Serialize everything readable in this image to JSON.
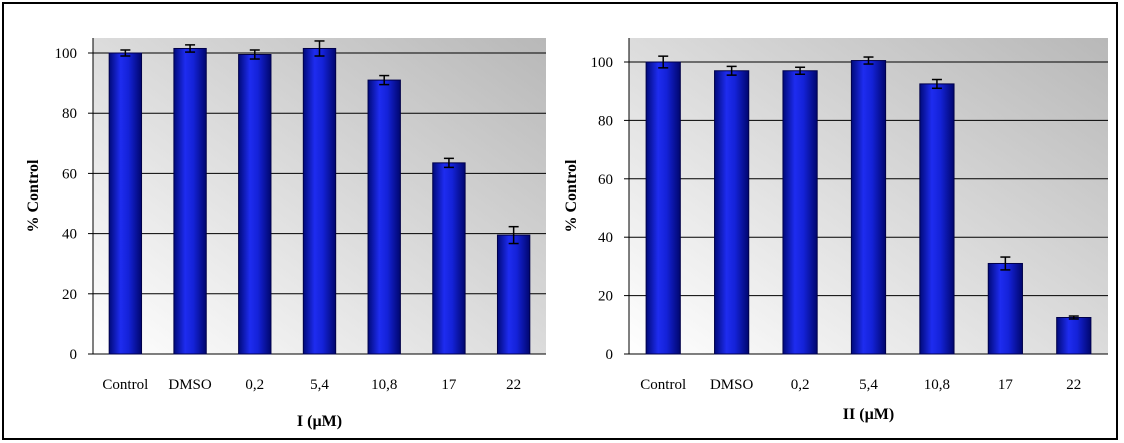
{
  "chart_data": [
    {
      "type": "bar",
      "title": "",
      "xlabel": "I (µM)",
      "ylabel": "% Control",
      "categories": [
        "Control",
        "DMSO",
        "0,2",
        "5,4",
        "10,8",
        "17",
        "22"
      ],
      "values": [
        100,
        101.5,
        99.5,
        101.5,
        91,
        63.5,
        39.5
      ],
      "errors": [
        1,
        1.2,
        1.5,
        2.5,
        1.5,
        1.5,
        2.8
      ],
      "ylim": [
        0,
        100
      ],
      "yticks": [
        "0",
        "20",
        "40",
        "60",
        "80",
        "100"
      ],
      "grid": true,
      "bar_color": "#0a12a8"
    },
    {
      "type": "bar",
      "title": "",
      "xlabel": "II (µM)",
      "ylabel": "% Control",
      "categories": [
        "Control",
        "DMSO",
        "0,2",
        "5,4",
        "10,8",
        "17",
        "22"
      ],
      "values": [
        100,
        97,
        97,
        100.5,
        92.5,
        31,
        12.5
      ],
      "errors": [
        2,
        1.5,
        1.2,
        1.2,
        1.5,
        2.2,
        0.5
      ],
      "ylim": [
        0,
        100
      ],
      "yticks": [
        "0",
        "20",
        "40",
        "60",
        "80",
        "100"
      ],
      "grid": true,
      "bar_color": "#0a12a8"
    }
  ]
}
